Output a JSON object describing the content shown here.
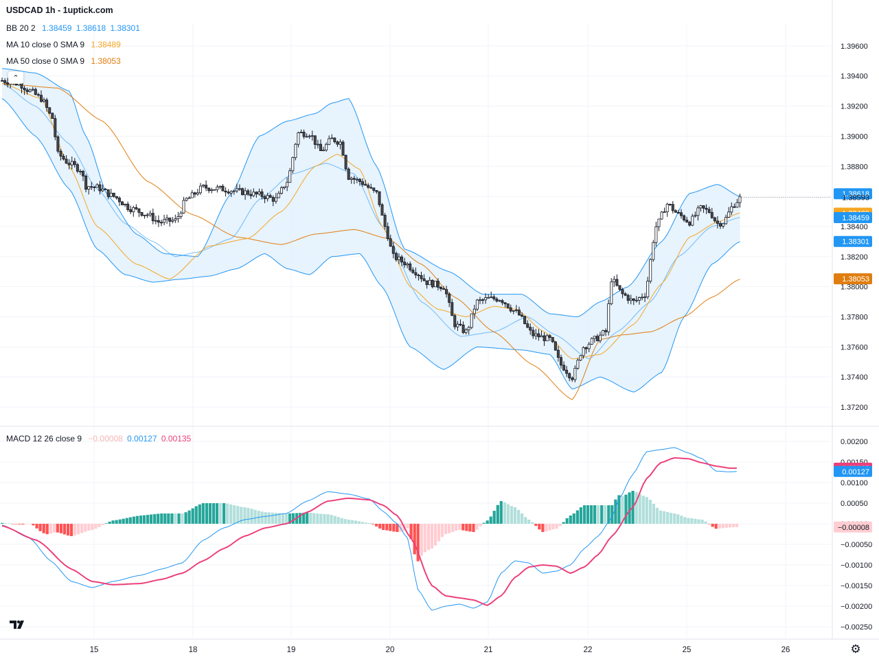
{
  "header": {
    "title": "USDCAD 1h - 1uptick.com"
  },
  "legends": {
    "bb": {
      "label": "BB 20 2",
      "values": [
        "1.38459",
        "1.38618",
        "1.38301"
      ],
      "color": "#2196f3"
    },
    "ma10": {
      "label": "MA 10 close 0 SMA 9",
      "value": "1.38489",
      "color": "#f5a623"
    },
    "ma50": {
      "label": "MA 50 close 0 SMA 9",
      "value": "1.38053",
      "color": "#e07d10"
    },
    "macd": {
      "label": "MACD 12 26 close 9",
      "values": [
        "−0.00008",
        "0.00127",
        "0.00135"
      ],
      "colors": [
        "#f7b5b5",
        "#2196f3",
        "#ec407a"
      ]
    }
  },
  "colors": {
    "up_candle": "#ffffff",
    "down_candle": "#4a4a4a",
    "bb_line": "#2196f3",
    "bb_fill": "#e3f1fd",
    "ma10": "#f5a623",
    "ma50": "#e07d10",
    "macd_line": "#2196f3",
    "signal_line": "#ec407a",
    "hist_up_strong": "#26a69a",
    "hist_up_weak": "#b2dfdb",
    "hist_down_strong": "#ff5252",
    "hist_down_weak": "#ffcdd2",
    "grid": "#f0f3fa"
  },
  "price_axis": {
    "ticks": [
      "1.39600",
      "1.39400",
      "1.39200",
      "1.39000",
      "1.38800",
      "1.38600",
      "1.38400",
      "1.38200",
      "1.38000",
      "1.37800",
      "1.37600",
      "1.37400",
      "1.37200"
    ],
    "badges": [
      {
        "text": "1.38618",
        "value": 1.38618,
        "color": "#2196f3"
      },
      {
        "text": "1.38593",
        "value": 1.38593,
        "color": "none"
      },
      {
        "text": "1.38489",
        "value": 1.38489,
        "color": "#f5a623"
      },
      {
        "text": "1.38459",
        "value": 1.38459,
        "color": "#2196f3"
      },
      {
        "text": "1.38301",
        "value": 1.38301,
        "color": "#2196f3"
      },
      {
        "text": "1.38053",
        "value": 1.38053,
        "color": "#e07d10"
      }
    ]
  },
  "macd_axis": {
    "ticks": [
      "0.00200",
      "0.00150",
      "0.00100",
      "0.00050",
      "0.00000",
      "−0.00050",
      "−0.00100",
      "−0.00150",
      "−0.00200",
      "−0.00250"
    ],
    "badges": [
      {
        "text": "0.00135",
        "value": 0.00135,
        "color": "#ec407a"
      },
      {
        "text": "0.00127",
        "value": 0.00127,
        "color": "#2196f3"
      },
      {
        "text": "−0.00008",
        "value": -8e-05,
        "color": "#ffcdd2"
      }
    ]
  },
  "time_axis": {
    "labels": [
      "15",
      "18",
      "19",
      "20",
      "21",
      "22",
      "25",
      "26"
    ]
  },
  "chart_data": {
    "type": "candlestick",
    "symbol": "USDCAD",
    "interval": "1h",
    "price_range": [
      1.371,
      1.3975
    ],
    "macd_range": [
      -0.00275,
      0.0023
    ],
    "bb_anchors": {
      "upper": [
        [
          0,
          1.3945
        ],
        [
          12,
          1.3942
        ],
        [
          24,
          1.393
        ],
        [
          30,
          1.39
        ],
        [
          38,
          1.386
        ],
        [
          48,
          1.3835
        ],
        [
          58,
          1.3822
        ],
        [
          70,
          1.382
        ],
        [
          82,
          1.3862
        ],
        [
          92,
          1.39
        ],
        [
          102,
          1.391
        ],
        [
          112,
          1.3915
        ],
        [
          118,
          1.3922
        ],
        [
          124,
          1.3925
        ],
        [
          134,
          1.388
        ],
        [
          144,
          1.3825
        ],
        [
          160,
          1.381
        ],
        [
          172,
          1.3795
        ],
        [
          186,
          1.3795
        ],
        [
          196,
          1.3782
        ],
        [
          206,
          1.378
        ],
        [
          214,
          1.379
        ],
        [
          224,
          1.38
        ],
        [
          236,
          1.383
        ],
        [
          246,
          1.3862
        ],
        [
          256,
          1.3868
        ],
        [
          264,
          1.386
        ]
      ],
      "middle": [
        [
          0,
          1.3935
        ],
        [
          12,
          1.392
        ],
        [
          24,
          1.3895
        ],
        [
          34,
          1.3865
        ],
        [
          44,
          1.3842
        ],
        [
          54,
          1.383
        ],
        [
          62,
          1.382
        ],
        [
          70,
          1.3823
        ],
        [
          82,
          1.3832
        ],
        [
          92,
          1.3858
        ],
        [
          104,
          1.3875
        ],
        [
          116,
          1.3882
        ],
        [
          126,
          1.3875
        ],
        [
          136,
          1.384
        ],
        [
          150,
          1.379
        ],
        [
          164,
          1.3767
        ],
        [
          176,
          1.377
        ],
        [
          188,
          1.378
        ],
        [
          198,
          1.3768
        ],
        [
          210,
          1.3752
        ],
        [
          220,
          1.377
        ],
        [
          232,
          1.379
        ],
        [
          242,
          1.382
        ],
        [
          254,
          1.384
        ],
        [
          264,
          1.3846
        ]
      ],
      "lower": [
        [
          0,
          1.3925
        ],
        [
          12,
          1.39
        ],
        [
          24,
          1.3865
        ],
        [
          34,
          1.3825
        ],
        [
          44,
          1.3808
        ],
        [
          54,
          1.3803
        ],
        [
          64,
          1.3805
        ],
        [
          74,
          1.3807
        ],
        [
          84,
          1.3812
        ],
        [
          94,
          1.3822
        ],
        [
          102,
          1.3812
        ],
        [
          110,
          1.3808
        ],
        [
          118,
          1.382
        ],
        [
          128,
          1.3822
        ],
        [
          136,
          1.38
        ],
        [
          146,
          1.376
        ],
        [
          158,
          1.3745
        ],
        [
          170,
          1.376
        ],
        [
          186,
          1.3758
        ],
        [
          196,
          1.3755
        ],
        [
          204,
          1.3732
        ],
        [
          214,
          1.374
        ],
        [
          226,
          1.373
        ],
        [
          236,
          1.3743
        ],
        [
          244,
          1.378
        ],
        [
          254,
          1.3815
        ],
        [
          264,
          1.383
        ]
      ]
    },
    "ma10_anchors": [
      [
        0,
        1.3935
      ],
      [
        14,
        1.3925
      ],
      [
        24,
        1.388
      ],
      [
        34,
        1.384
      ],
      [
        48,
        1.3815
      ],
      [
        60,
        1.3805
      ],
      [
        74,
        1.3827
      ],
      [
        88,
        1.3832
      ],
      [
        100,
        1.385
      ],
      [
        112,
        1.388
      ],
      [
        120,
        1.3888
      ],
      [
        128,
        1.3878
      ],
      [
        136,
        1.384
      ],
      [
        146,
        1.38
      ],
      [
        156,
        1.3785
      ],
      [
        166,
        1.378
      ],
      [
        176,
        1.3787
      ],
      [
        184,
        1.3785
      ],
      [
        194,
        1.377
      ],
      [
        204,
        1.3752
      ],
      [
        214,
        1.3755
      ],
      [
        226,
        1.3775
      ],
      [
        236,
        1.3802
      ],
      [
        246,
        1.3833
      ],
      [
        256,
        1.3843
      ],
      [
        264,
        1.3849
      ]
    ],
    "ma50_anchors": [
      [
        0,
        1.3935
      ],
      [
        20,
        1.3932
      ],
      [
        36,
        1.391
      ],
      [
        52,
        1.387
      ],
      [
        68,
        1.3848
      ],
      [
        84,
        1.3833
      ],
      [
        100,
        1.3828
      ],
      [
        112,
        1.3835
      ],
      [
        126,
        1.3838
      ],
      [
        138,
        1.3832
      ],
      [
        150,
        1.3815
      ],
      [
        162,
        1.3793
      ],
      [
        176,
        1.377
      ],
      [
        190,
        1.3748
      ],
      [
        204,
        1.3725
      ],
      [
        214,
        1.3765
      ],
      [
        222,
        1.3768
      ],
      [
        232,
        1.377
      ],
      [
        244,
        1.378
      ],
      [
        254,
        1.3793
      ],
      [
        264,
        1.3805
      ]
    ],
    "price_anchors": [
      [
        0,
        1.3937
      ],
      [
        6,
        1.3935
      ],
      [
        10,
        1.393
      ],
      [
        14,
        1.3925
      ],
      [
        18,
        1.3912
      ],
      [
        20,
        1.3888
      ],
      [
        24,
        1.3882
      ],
      [
        28,
        1.3878
      ],
      [
        30,
        1.3867
      ],
      [
        34,
        1.3866
      ],
      [
        40,
        1.386
      ],
      [
        46,
        1.3852
      ],
      [
        52,
        1.3848
      ],
      [
        56,
        1.3843
      ],
      [
        62,
        1.3844
      ],
      [
        66,
        1.3858
      ],
      [
        72,
        1.3866
      ],
      [
        78,
        1.3865
      ],
      [
        86,
        1.3863
      ],
      [
        92,
        1.3861
      ],
      [
        98,
        1.3858
      ],
      [
        102,
        1.387
      ],
      [
        106,
        1.3902
      ],
      [
        110,
        1.3902
      ],
      [
        114,
        1.389
      ],
      [
        118,
        1.3898
      ],
      [
        121,
        1.3896
      ],
      [
        124,
        1.3873
      ],
      [
        128,
        1.387
      ],
      [
        134,
        1.3862
      ],
      [
        137,
        1.384
      ],
      [
        140,
        1.382
      ],
      [
        144,
        1.3816
      ],
      [
        148,
        1.381
      ],
      [
        152,
        1.3803
      ],
      [
        158,
        1.38
      ],
      [
        162,
        1.3775
      ],
      [
        166,
        1.377
      ],
      [
        170,
        1.379
      ],
      [
        174,
        1.3792
      ],
      [
        178,
        1.3792
      ],
      [
        184,
        1.3783
      ],
      [
        190,
        1.3768
      ],
      [
        196,
        1.3765
      ],
      [
        200,
        1.3748
      ],
      [
        204,
        1.374
      ],
      [
        208,
        1.376
      ],
      [
        212,
        1.3765
      ],
      [
        216,
        1.377
      ],
      [
        218,
        1.3805
      ],
      [
        222,
        1.3795
      ],
      [
        226,
        1.379
      ],
      [
        230,
        1.3795
      ],
      [
        234,
        1.384
      ],
      [
        238,
        1.3855
      ],
      [
        242,
        1.3848
      ],
      [
        246,
        1.3843
      ],
      [
        250,
        1.3852
      ],
      [
        253,
        1.385
      ],
      [
        256,
        1.3842
      ],
      [
        258,
        1.3843
      ],
      [
        262,
        1.3855
      ],
      [
        264,
        1.3859
      ]
    ],
    "macd_anchors": [
      [
        0,
        -3e-05
      ],
      [
        8,
        -0.00035
      ],
      [
        14,
        -0.0009
      ],
      [
        20,
        -0.0014
      ],
      [
        26,
        -0.00155
      ],
      [
        32,
        -0.0014
      ],
      [
        40,
        -0.00125
      ],
      [
        46,
        -0.0011
      ],
      [
        52,
        -0.00095
      ],
      [
        58,
        -0.0004
      ],
      [
        64,
        -0.0001
      ],
      [
        70,
        0.0001
      ],
      [
        76,
        0.00018
      ],
      [
        82,
        0.00025
      ],
      [
        88,
        0.00055
      ],
      [
        94,
        0.00078
      ],
      [
        100,
        0.00072
      ],
      [
        106,
        0.0006
      ],
      [
        110,
        0.0003
      ],
      [
        114,
        0.0
      ],
      [
        117,
        -0.00035
      ],
      [
        120,
        -0.0016
      ],
      [
        124,
        -0.0021
      ],
      [
        128,
        -0.002
      ],
      [
        132,
        -0.00195
      ],
      [
        136,
        -0.00205
      ],
      [
        140,
        -0.0019
      ],
      [
        144,
        -0.0012
      ],
      [
        148,
        -0.0009
      ],
      [
        152,
        -0.00095
      ],
      [
        156,
        -0.0012
      ],
      [
        160,
        -0.00115
      ],
      [
        164,
        -0.001
      ],
      [
        168,
        -0.0006
      ],
      [
        172,
        -0.0003
      ],
      [
        176,
        0.00015
      ],
      [
        178,
        0.0006
      ],
      [
        182,
        0.0012
      ],
      [
        186,
        0.00175
      ],
      [
        190,
        0.0018
      ],
      [
        194,
        0.00185
      ],
      [
        198,
        0.00172
      ],
      [
        202,
        0.00158
      ],
      [
        206,
        0.00128
      ],
      [
        210,
        0.00126
      ],
      [
        212,
        0.00127
      ]
    ],
    "signal_anchors": [
      [
        0,
        -5e-05
      ],
      [
        10,
        -0.0004
      ],
      [
        20,
        -0.0011
      ],
      [
        26,
        -0.0014
      ],
      [
        32,
        -0.00148
      ],
      [
        40,
        -0.00145
      ],
      [
        46,
        -0.00135
      ],
      [
        52,
        -0.0012
      ],
      [
        58,
        -0.0009
      ],
      [
        64,
        -0.0006
      ],
      [
        70,
        -0.0003
      ],
      [
        76,
        -0.0001
      ],
      [
        82,
        0.0
      ],
      [
        88,
        0.00028
      ],
      [
        94,
        0.00055
      ],
      [
        100,
        0.00062
      ],
      [
        106,
        0.00058
      ],
      [
        110,
        0.00045
      ],
      [
        114,
        0.0002
      ],
      [
        118,
        -0.00035
      ],
      [
        124,
        -0.0015
      ],
      [
        128,
        -0.00175
      ],
      [
        132,
        -0.0018
      ],
      [
        136,
        -0.00185
      ],
      [
        140,
        -0.00198
      ],
      [
        144,
        -0.00175
      ],
      [
        148,
        -0.0013
      ],
      [
        152,
        -0.00105
      ],
      [
        156,
        -0.001
      ],
      [
        160,
        -0.00103
      ],
      [
        164,
        -0.0012
      ],
      [
        168,
        -0.00105
      ],
      [
        172,
        -0.00075
      ],
      [
        176,
        -0.0003
      ],
      [
        182,
        0.0004
      ],
      [
        186,
        0.0011
      ],
      [
        190,
        0.00148
      ],
      [
        194,
        0.0016
      ],
      [
        198,
        0.00158
      ],
      [
        202,
        0.00148
      ],
      [
        206,
        0.0014
      ],
      [
        210,
        0.00135
      ],
      [
        212,
        0.00135
      ]
    ]
  }
}
